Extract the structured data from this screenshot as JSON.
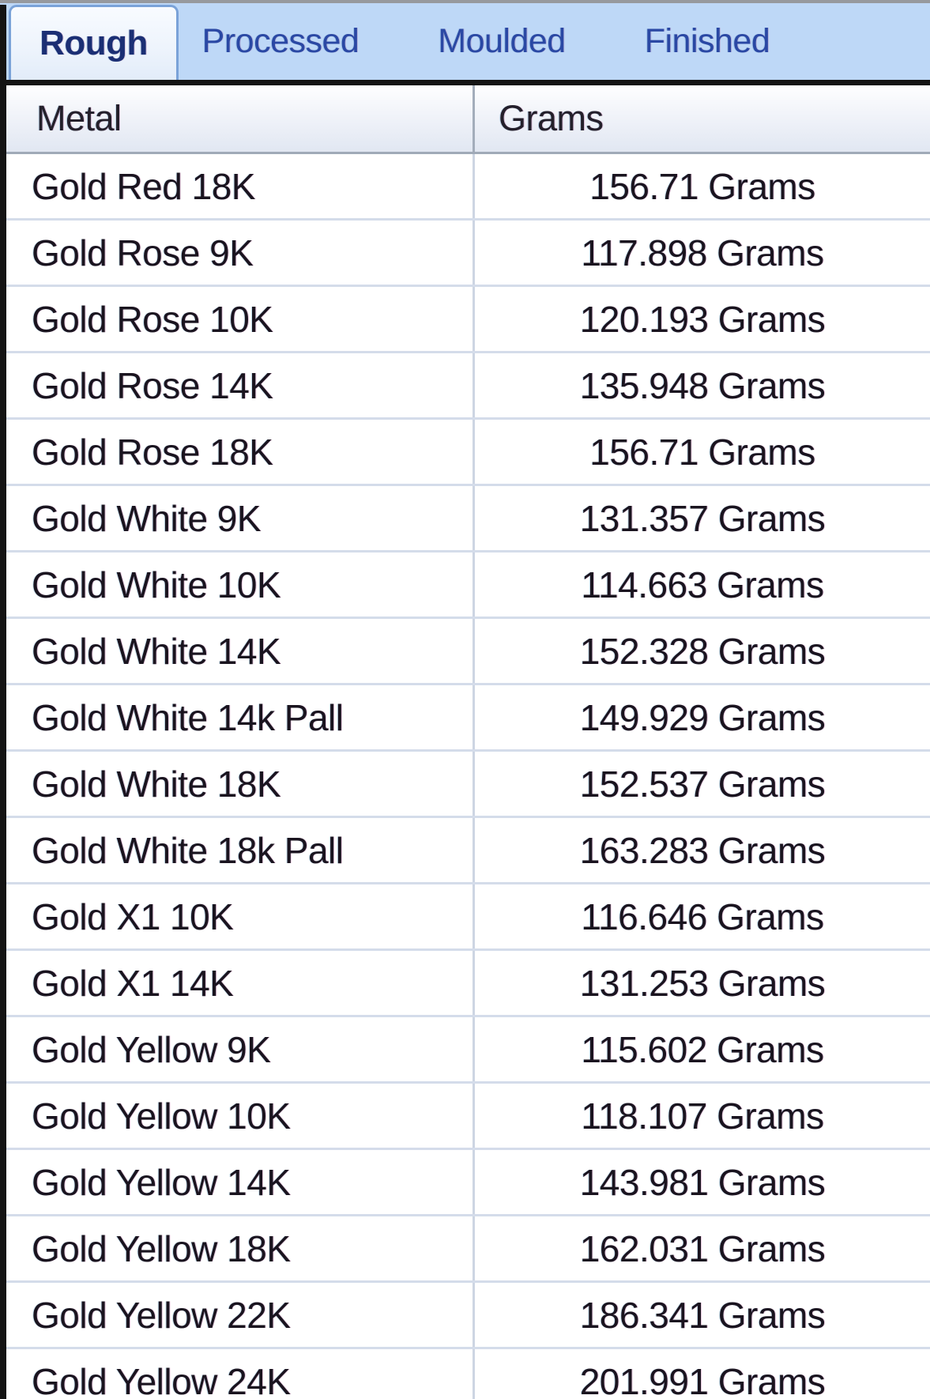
{
  "tabs": [
    {
      "label": "Rough",
      "selected": true
    },
    {
      "label": "Processed",
      "selected": false
    },
    {
      "label": "Moulded",
      "selected": false
    },
    {
      "label": "Finished",
      "selected": false
    }
  ],
  "table": {
    "columns": [
      {
        "label": "Metal"
      },
      {
        "label": "Grams"
      }
    ],
    "rows": [
      {
        "metal": "Gold Red 18K",
        "grams": "156.71 Grams"
      },
      {
        "metal": "Gold Rose 9K",
        "grams": "117.898 Grams"
      },
      {
        "metal": "Gold Rose 10K",
        "grams": "120.193 Grams"
      },
      {
        "metal": "Gold Rose 14K",
        "grams": "135.948 Grams"
      },
      {
        "metal": "Gold Rose 18K",
        "grams": "156.71 Grams"
      },
      {
        "metal": "Gold White 9K",
        "grams": "131.357 Grams"
      },
      {
        "metal": "Gold White 10K",
        "grams": "114.663 Grams"
      },
      {
        "metal": "Gold White 14K",
        "grams": "152.328 Grams"
      },
      {
        "metal": "Gold White 14k Pall",
        "grams": "149.929 Grams"
      },
      {
        "metal": "Gold White 18K",
        "grams": "152.537 Grams"
      },
      {
        "metal": "Gold White 18k Pall",
        "grams": "163.283 Grams"
      },
      {
        "metal": "Gold X1 10K",
        "grams": "116.646 Grams"
      },
      {
        "metal": "Gold X1 14K",
        "grams": "131.253 Grams"
      },
      {
        "metal": "Gold Yellow 9K",
        "grams": "115.602 Grams"
      },
      {
        "metal": "Gold Yellow 10K",
        "grams": "118.107 Grams"
      },
      {
        "metal": "Gold Yellow 14K",
        "grams": "143.981 Grams"
      },
      {
        "metal": "Gold Yellow 18K",
        "grams": "162.031 Grams"
      },
      {
        "metal": "Gold Yellow 22K",
        "grams": "186.341 Grams"
      },
      {
        "metal": "Gold Yellow 24K",
        "grams": "201.991 Grams"
      }
    ]
  },
  "colors": {
    "tab_strip_bg": "#bed8f7",
    "tab_text": "#2a48a4",
    "selected_tab_text": "#1b2f74",
    "selected_tab_border": "#7aa2d8",
    "table_frame": "#141414",
    "header_gradient_bottom": "#e1e7f2",
    "row_divider": "#d4dcea",
    "column_divider": "#cdd5e3",
    "cell_text": "#1a141f"
  }
}
